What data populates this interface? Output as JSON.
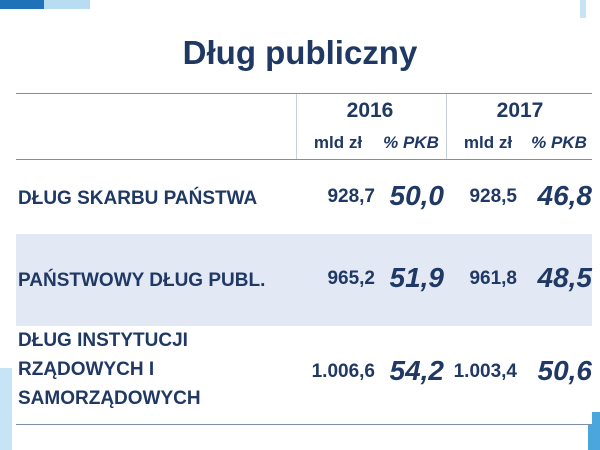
{
  "title": "Dług publiczny",
  "years": [
    "2016",
    "2017"
  ],
  "columns": [
    "mld zł",
    "% PKB",
    "mld zł",
    "% PKB"
  ],
  "rows": [
    {
      "label": "DŁUG SKARBU PAŃSTWA",
      "label_lines": [
        "DŁUG SKARBU PAŃSTWA"
      ],
      "values": [
        "928,7",
        "50,0",
        "928,5",
        "46,8"
      ]
    },
    {
      "label": "PAŃSTWOWY DŁUG PUBL.",
      "label_lines": [
        "PAŃSTWOWY DŁUG PUBL."
      ],
      "values": [
        "965,2",
        "51,9",
        "961,8",
        "48,5"
      ]
    },
    {
      "label": "DŁUG INSTYTUCJI RZĄDOWYCH I SAMORZĄDOWYCH",
      "label_lines": [
        "DŁUG INSTYTUCJI",
        "RZĄDOWYCH I",
        "SAMORZĄDOWYCH"
      ],
      "values": [
        "1.006,6",
        "54,2",
        "1.003,4",
        "50,6"
      ]
    }
  ],
  "colors": {
    "text": "#1f3864",
    "band": "#e3e9f4",
    "accent": "#1e73b8"
  }
}
